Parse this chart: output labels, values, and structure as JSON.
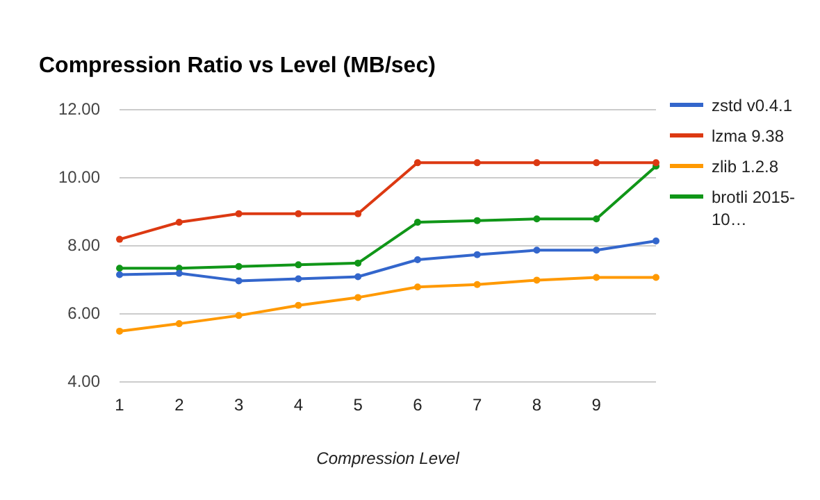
{
  "chart_data": {
    "type": "line",
    "title": "Compression Ratio vs Level (MB/sec)",
    "xlabel": "Compression Level",
    "categories": [
      "1",
      "2",
      "3",
      "4",
      "5",
      "6",
      "7",
      "8",
      "9",
      null
    ],
    "series": [
      {
        "name": "zstd v0.4.1",
        "color": "#3366cc",
        "values": [
          7.16,
          7.2,
          6.98,
          7.04,
          7.1,
          7.6,
          7.75,
          7.88,
          7.88,
          8.15
        ]
      },
      {
        "name": "lzma 9.38",
        "color": "#dc3912",
        "values": [
          8.2,
          8.7,
          8.95,
          8.95,
          8.95,
          10.45,
          10.45,
          10.45,
          10.45,
          10.45
        ]
      },
      {
        "name": "zlib 1.2.8",
        "color": "#ff9900",
        "values": [
          5.5,
          5.72,
          5.96,
          6.26,
          6.49,
          6.8,
          6.87,
          7.0,
          7.08,
          7.08
        ]
      },
      {
        "name": "brotli 2015-10…",
        "color": "#109618",
        "values": [
          7.35,
          7.35,
          7.4,
          7.45,
          7.5,
          8.7,
          8.75,
          8.8,
          8.8,
          10.35
        ]
      }
    ],
    "ylim": [
      4,
      12
    ],
    "yticks": [
      {
        "value": 4,
        "label": "4.00"
      },
      {
        "value": 6,
        "label": "6.00"
      },
      {
        "value": 8,
        "label": "8.00"
      },
      {
        "value": 10,
        "label": "10.00"
      },
      {
        "value": 12,
        "label": "12.00"
      }
    ],
    "grid": "y",
    "legend": "right",
    "marker": "circle",
    "line_style": "solid"
  }
}
